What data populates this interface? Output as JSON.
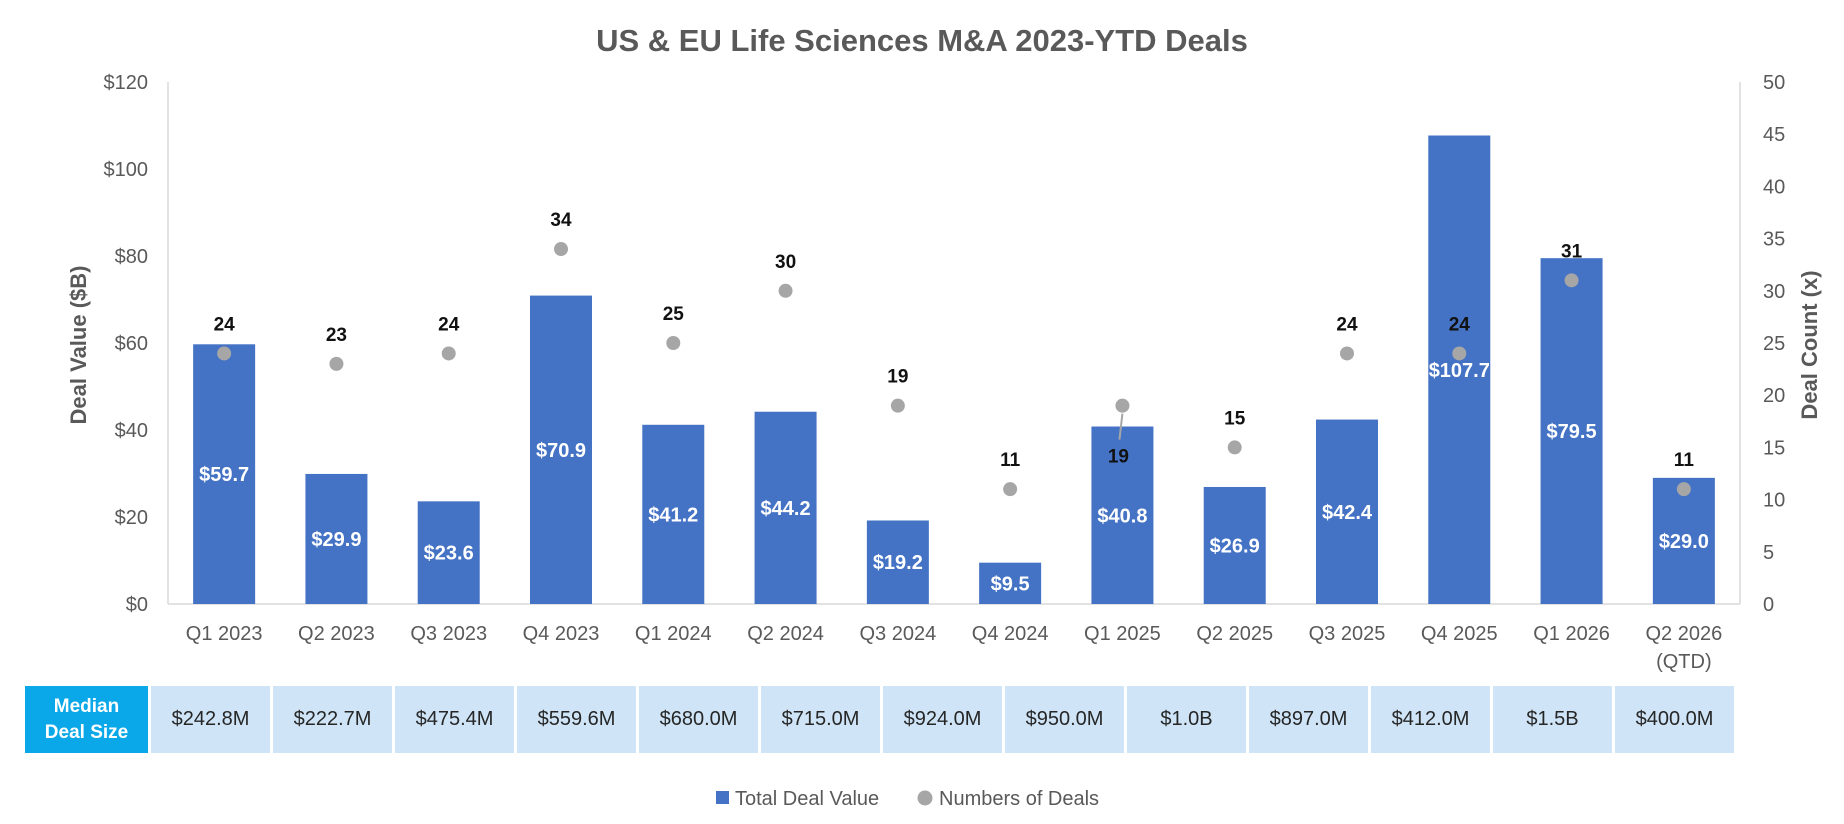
{
  "chart_data": {
    "type": "bar",
    "title": "US & EU Life Sciences M&A 2023-YTD Deals",
    "ylabel": "Deal Value ($B)",
    "y2label": "Deal Count (x)",
    "ylim": [
      0,
      120
    ],
    "y2lim": [
      0,
      50
    ],
    "yticks": [
      "$0",
      "$20",
      "$40",
      "$60",
      "$80",
      "$100",
      "$120"
    ],
    "y2ticks": [
      "0",
      "5",
      "10",
      "15",
      "20",
      "25",
      "30",
      "35",
      "40",
      "45",
      "50"
    ],
    "categories": [
      "Q1 2023",
      "Q2 2023",
      "Q3 2023",
      "Q4 2023",
      "Q1 2024",
      "Q2 2024",
      "Q3 2024",
      "Q4 2024",
      "Q1 2025",
      "Q2 2025",
      "Q3 2025",
      "Q4 2025",
      "Q1 2026",
      "Q2 2026 (QTD)"
    ],
    "series": [
      {
        "name": "Total Deal Value",
        "type": "bar",
        "axis": "left",
        "color": "#4472c4",
        "values": [
          59.7,
          29.9,
          23.6,
          70.9,
          41.2,
          44.2,
          19.2,
          9.5,
          40.8,
          26.9,
          42.4,
          107.7,
          79.5,
          29.0
        ],
        "labels": [
          "$59.7",
          "$29.9",
          "$23.6",
          "$70.9",
          "$41.2",
          "$44.2",
          "$19.2",
          "$9.5",
          "$40.8",
          "$26.9",
          "$42.4",
          "$107.7",
          "$79.5",
          "$29.0"
        ]
      },
      {
        "name": "Numbers of Deals",
        "type": "scatter",
        "axis": "right",
        "color": "#a6a6a6",
        "values": [
          24,
          23,
          24,
          34,
          25,
          30,
          19,
          11,
          19,
          15,
          24,
          24,
          31,
          11
        ],
        "labels": [
          "24",
          "23",
          "24",
          "34",
          "25",
          "30",
          "19",
          "11",
          "19",
          "15",
          "24",
          "24",
          "31",
          "11"
        ]
      }
    ],
    "legend": "bottom"
  },
  "median_deal_size": {
    "header_line1": "Median",
    "header_line2": "Deal Size",
    "values": [
      "$242.8M",
      "$222.7M",
      "$475.4M",
      "$559.6M",
      "$680.0M",
      "$715.0M",
      "$924.0M",
      "$950.0M",
      "$1.0B",
      "$897.0M",
      "$412.0M",
      "$1.5B",
      "$400.0M"
    ]
  }
}
